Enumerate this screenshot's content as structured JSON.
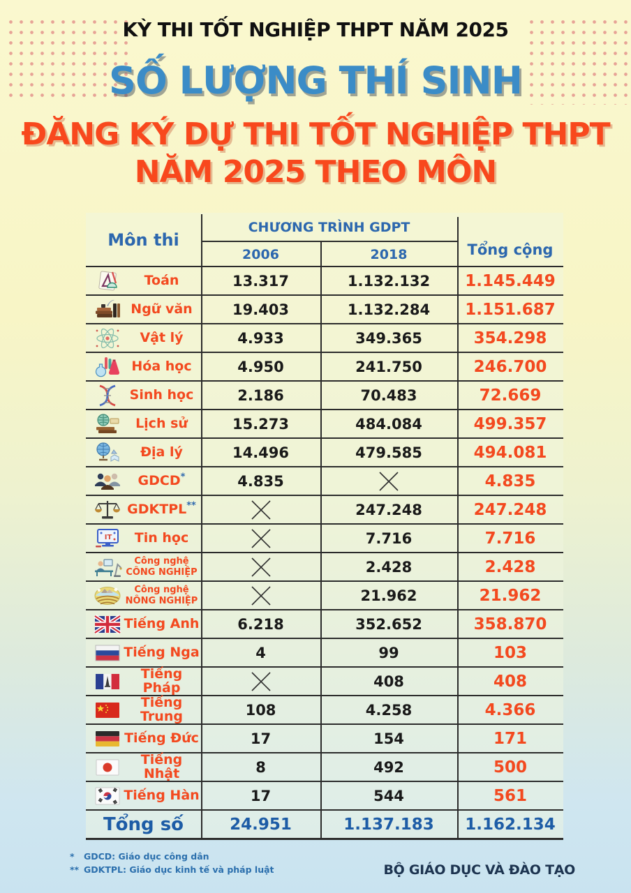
{
  "page": {
    "kicker": "KỲ THI TỐT NGHIỆP THPT NĂM 2025",
    "title": "SỐ LƯỢNG THÍ SINH",
    "subtitle_line1": "ĐĂNG KÝ DỰ THI TỐT NGHIỆP THPT",
    "subtitle_line2": "NĂM 2025 THEO MÔN",
    "footer_org": "BỘ GIÁO DỤC VÀ ĐÀO TẠO"
  },
  "table": {
    "headers": {
      "subject": "Môn thi",
      "program_group": "CHƯƠNG TRÌNH GDPT",
      "col_2006": "2006",
      "col_2018": "2018",
      "total": "Tổng cộng"
    },
    "rows": [
      {
        "icon": "math-icon",
        "subject": "Toán",
        "v2006": "13.317",
        "v2018": "1.132.132",
        "total": "1.145.449"
      },
      {
        "icon": "literature-icon",
        "subject": "Ngữ văn",
        "v2006": "19.403",
        "v2018": "1.132.284",
        "total": "1.151.687"
      },
      {
        "icon": "physics-icon",
        "subject": "Vật lý",
        "v2006": "4.933",
        "v2018": "349.365",
        "total": "354.298"
      },
      {
        "icon": "chemistry-icon",
        "subject": "Hóa học",
        "v2006": "4.950",
        "v2018": "241.750",
        "total": "246.700"
      },
      {
        "icon": "biology-icon",
        "subject": "Sinh học",
        "v2006": "2.186",
        "v2018": "70.483",
        "total": "72.669"
      },
      {
        "icon": "history-icon",
        "subject": "Lịch sử",
        "v2006": "15.273",
        "v2018": "484.084",
        "total": "499.357"
      },
      {
        "icon": "geography-icon",
        "subject": "Địa lý",
        "v2006": "14.496",
        "v2018": "479.585",
        "total": "494.081"
      },
      {
        "icon": "civics-icon",
        "subject": "GDCD",
        "mark": "*",
        "v2006": "4.835",
        "v2018": "x",
        "total": "4.835"
      },
      {
        "icon": "law-icon",
        "subject": "GDKTPL",
        "mark": "**",
        "v2006": "x",
        "v2018": "247.248",
        "total": "247.248"
      },
      {
        "icon": "informatics-icon",
        "subject": "Tin học",
        "v2006": "x",
        "v2018": "7.716",
        "total": "7.716"
      },
      {
        "icon": "industrial-tech-icon",
        "subject": "Công nghệ",
        "subject2": "CÔNG NGHIỆP",
        "v2006": "x",
        "v2018": "2.428",
        "total": "2.428"
      },
      {
        "icon": "agricultural-tech-icon",
        "subject": "Công nghệ",
        "subject2": "NÔNG NGHIỆP",
        "v2006": "x",
        "v2018": "21.962",
        "total": "21.962"
      },
      {
        "icon": "flag-uk-icon",
        "subject": "Tiếng Anh",
        "v2006": "6.218",
        "v2018": "352.652",
        "total": "358.870"
      },
      {
        "icon": "flag-russia-icon",
        "subject": "Tiếng Nga",
        "v2006": "4",
        "v2018": "99",
        "total": "103"
      },
      {
        "icon": "flag-france-icon",
        "subject": "Tiếng Pháp",
        "v2006": "x",
        "v2018": "408",
        "total": "408"
      },
      {
        "icon": "flag-china-icon",
        "subject": "Tiếng Trung",
        "v2006": "108",
        "v2018": "4.258",
        "total": "4.366"
      },
      {
        "icon": "flag-germany-icon",
        "subject": "Tiếng Đức",
        "v2006": "17",
        "v2018": "154",
        "total": "171"
      },
      {
        "icon": "flag-japan-icon",
        "subject": "Tiếng Nhật",
        "v2006": "8",
        "v2018": "492",
        "total": "500"
      },
      {
        "icon": "flag-korea-icon",
        "subject": "Tiếng Hàn",
        "v2006": "17",
        "v2018": "544",
        "total": "561"
      }
    ],
    "total_row": {
      "label": "Tổng số",
      "v2006": "24.951",
      "v2018": "1.137.183",
      "total": "1.162.134"
    }
  },
  "footnotes": [
    {
      "mark": "*",
      "text": "GDCD: Giáo dục công dân"
    },
    {
      "mark": "**",
      "text": "GDKTPL: Giáo dục kinh tế và pháp luật"
    }
  ],
  "colors": {
    "accent_red": "#f3491f",
    "accent_blue": "#2c67ae",
    "title_blue": "#3b8cc7",
    "subtitle_red": "#f8481d",
    "total_row_blue": "#1d5ca6",
    "ink": "#191919",
    "bg_top": "#f8f5c6",
    "bg_bottom": "#c9e3f0"
  }
}
